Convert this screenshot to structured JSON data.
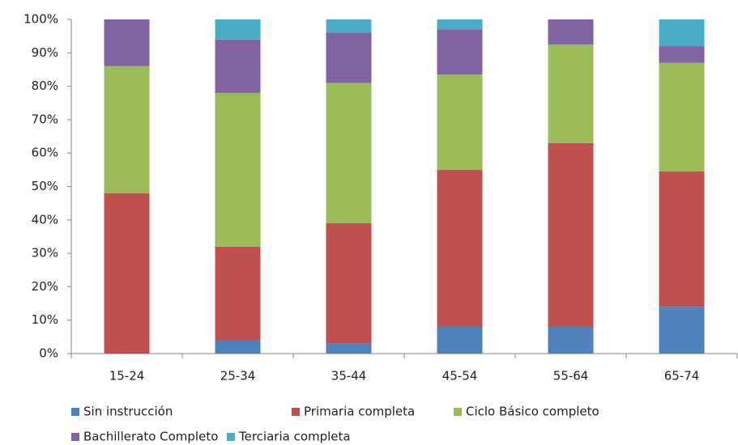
{
  "chart_data": {
    "type": "stacked_bar",
    "categories": [
      "15-24",
      "25-34",
      "35-44",
      "45-54",
      "55-64",
      "65-74"
    ],
    "series": [
      {
        "name": "Sin instrucción",
        "color": "#4f81bd",
        "values": [
          0,
          4,
          3,
          8,
          8,
          14
        ]
      },
      {
        "name": "Primaria completa",
        "color": "#c0504d",
        "values": [
          48,
          28,
          36,
          47,
          55,
          40.5
        ]
      },
      {
        "name": "Ciclo Básico completo",
        "color": "#9bbb59",
        "values": [
          38,
          46,
          42,
          28.5,
          29.5,
          32.5
        ]
      },
      {
        "name": "Bachillerato Completo",
        "color": "#8064a2",
        "values": [
          14,
          16,
          15,
          13.5,
          7.5,
          5
        ]
      },
      {
        "name": "Terciaria completa",
        "color": "#4bacc6",
        "values": [
          0,
          6,
          4,
          3,
          0,
          8
        ]
      }
    ],
    "ylim": [
      0,
      100
    ],
    "yticks": [
      {
        "value": 0,
        "label": "0%"
      },
      {
        "value": 10,
        "label": "10%"
      },
      {
        "value": 20,
        "label": "20%"
      },
      {
        "value": 30,
        "label": "30%"
      },
      {
        "value": 40,
        "label": "40%"
      },
      {
        "value": 50,
        "label": "50%"
      },
      {
        "value": 60,
        "label": "60%"
      },
      {
        "value": 70,
        "label": "70%"
      },
      {
        "value": 80,
        "label": "80%"
      },
      {
        "value": 90,
        "label": "90%"
      },
      {
        "value": 100,
        "label": "100%"
      }
    ],
    "legend": "bottom"
  }
}
